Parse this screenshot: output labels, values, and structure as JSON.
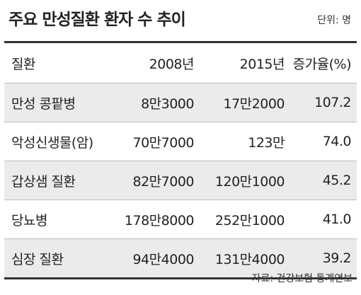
{
  "title": "주요 만성질환 환자 수 추이",
  "unit": "단위: 명",
  "table": {
    "headers": [
      "질환",
      "2008년",
      "2015년",
      "증가율(%)"
    ],
    "rows": [
      [
        "만성 콩팥병",
        "8만3000",
        "17만2000",
        "107.2"
      ],
      [
        "악성신생물(암)",
        "70만7000",
        "123만",
        "74.0"
      ],
      [
        "갑상샘 질환",
        "82만7000",
        "120만1000",
        "45.2"
      ],
      [
        "당뇨병",
        "178만8000",
        "252만1000",
        "41.0"
      ],
      [
        "심장 질환",
        "94만4000",
        "131만4000",
        "39.2"
      ]
    ]
  },
  "source": "자료: 건강보험 통계연보",
  "colors": {
    "alt_row_bg": "#ebebeb",
    "rule": "#333333"
  }
}
